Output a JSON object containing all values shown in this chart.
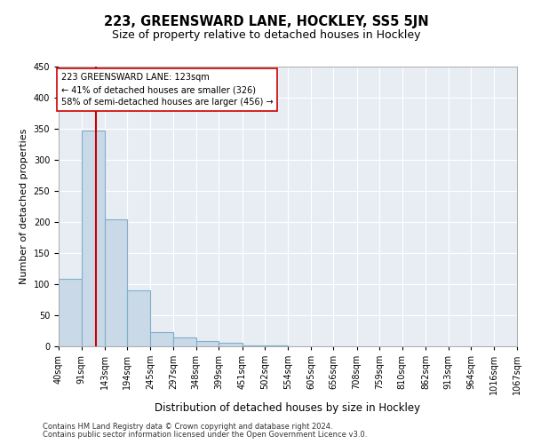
{
  "title": "223, GREENSWARD LANE, HOCKLEY, SS5 5JN",
  "subtitle": "Size of property relative to detached houses in Hockley",
  "xlabel": "Distribution of detached houses by size in Hockley",
  "ylabel": "Number of detached properties",
  "footer_line1": "Contains HM Land Registry data © Crown copyright and database right 2024.",
  "footer_line2": "Contains public sector information licensed under the Open Government Licence v3.0.",
  "bin_edges": [
    40,
    91,
    143,
    194,
    245,
    297,
    348,
    399,
    451,
    502,
    554,
    605,
    656,
    708,
    759,
    810,
    862,
    913,
    964,
    1016,
    1067
  ],
  "bar_heights": [
    108,
    347,
    204,
    90,
    23,
    14,
    8,
    6,
    2,
    1,
    0,
    0,
    0,
    0,
    0,
    0,
    0,
    0,
    0,
    0
  ],
  "bar_color": "#c9d9e8",
  "bar_edge_color": "#7fafc8",
  "bar_linewidth": 0.8,
  "bg_color": "#e8edf4",
  "grid_color": "#ffffff",
  "property_size": 123,
  "red_line_color": "#cc0000",
  "annotation_text": "223 GREENSWARD LANE: 123sqm\n← 41% of detached houses are smaller (326)\n58% of semi-detached houses are larger (456) →",
  "annotation_box_color": "#ffffff",
  "annotation_box_edge": "#cc0000",
  "ylim": [
    0,
    450
  ],
  "yticks": [
    0,
    50,
    100,
    150,
    200,
    250,
    300,
    350,
    400,
    450
  ],
  "title_fontsize": 10.5,
  "subtitle_fontsize": 9,
  "xlabel_fontsize": 8.5,
  "ylabel_fontsize": 8,
  "tick_fontsize": 7,
  "annotation_fontsize": 7,
  "footer_fontsize": 6
}
